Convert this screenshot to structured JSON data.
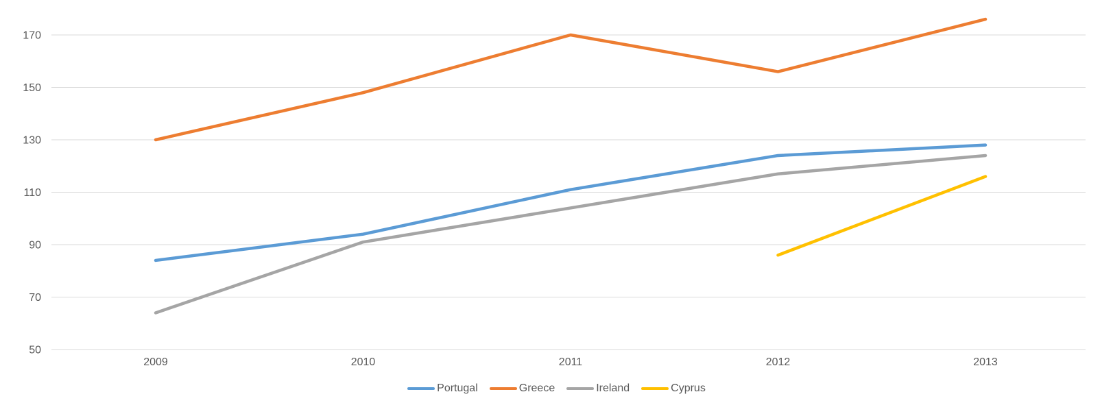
{
  "chart_data": {
    "type": "line",
    "x": [
      "2009",
      "2010",
      "2011",
      "2012",
      "2013"
    ],
    "series": [
      {
        "name": "Portugal",
        "color": "#5B9BD5",
        "values": [
          84,
          94,
          111,
          124,
          128
        ]
      },
      {
        "name": "Greece",
        "color": "#ED7D31",
        "values": [
          130,
          148,
          170,
          156,
          176
        ]
      },
      {
        "name": "Ireland",
        "color": "#A5A5A5",
        "values": [
          64,
          91,
          104,
          117,
          124
        ]
      },
      {
        "name": "Cyprus",
        "color": "#FFC000",
        "values": [
          null,
          null,
          null,
          86,
          116
        ]
      }
    ],
    "title": "",
    "xlabel": "",
    "ylabel": "",
    "ylim": [
      50,
      178
    ],
    "yticks": [
      50,
      70,
      90,
      110,
      130,
      150,
      170
    ],
    "grid": true,
    "legend_position": "bottom"
  },
  "colors": {
    "background": "#FFFFFF",
    "gridline": "#D9D9D9",
    "tick_label": "#595959",
    "legend_label": "#595959"
  }
}
